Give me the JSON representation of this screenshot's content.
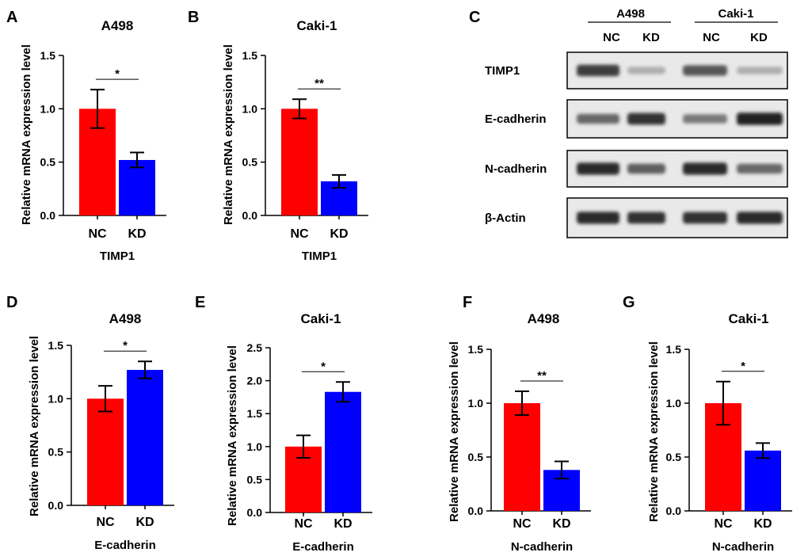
{
  "colors": {
    "nc": "#ff0000",
    "kd": "#0000ff",
    "axis": "#000000"
  },
  "chart_data": [
    {
      "panel": "A",
      "type": "bar",
      "title": "A498",
      "xlabel": "TIMP1",
      "ylabel": "Relative mRNA expression level",
      "categories": [
        "NC",
        "KD"
      ],
      "values": [
        1.0,
        0.52
      ],
      "errors": [
        0.18,
        0.07
      ],
      "ylim": [
        0,
        1.5
      ],
      "yticks": [
        "0.0",
        "0.5",
        "1.0",
        "1.5"
      ],
      "significance": "*"
    },
    {
      "panel": "B",
      "type": "bar",
      "title": "Caki-1",
      "xlabel": "TIMP1",
      "ylabel": "Relative mRNA expression level",
      "categories": [
        "NC",
        "KD"
      ],
      "values": [
        1.0,
        0.32
      ],
      "errors": [
        0.09,
        0.06
      ],
      "ylim": [
        0,
        1.5
      ],
      "yticks": [
        "0.0",
        "0.5",
        "1.0",
        "1.5"
      ],
      "significance": "**"
    },
    {
      "panel": "D",
      "type": "bar",
      "title": "A498",
      "xlabel": "E-cadherin",
      "ylabel": "Relative mRNA expression level",
      "categories": [
        "NC",
        "KD"
      ],
      "values": [
        1.0,
        1.27
      ],
      "errors": [
        0.12,
        0.08
      ],
      "ylim": [
        0,
        1.5
      ],
      "yticks": [
        "0.0",
        "0.5",
        "1.0",
        "1.5"
      ],
      "significance": "*"
    },
    {
      "panel": "E",
      "type": "bar",
      "title": "Caki-1",
      "xlabel": "E-cadherin",
      "ylabel": "Relative mRNA expression level",
      "categories": [
        "NC",
        "KD"
      ],
      "values": [
        1.0,
        1.83
      ],
      "errors": [
        0.17,
        0.15
      ],
      "ylim": [
        0,
        2.5
      ],
      "yticks": [
        "0.0",
        "0.5",
        "1.0",
        "1.5",
        "2.0",
        "2.5"
      ],
      "significance": "*"
    },
    {
      "panel": "F",
      "type": "bar",
      "title": "A498",
      "xlabel": "N-cadherin",
      "ylabel": "Relative mRNA expression level",
      "categories": [
        "NC",
        "KD"
      ],
      "values": [
        1.0,
        0.38
      ],
      "errors": [
        0.11,
        0.08
      ],
      "ylim": [
        0,
        1.5
      ],
      "yticks": [
        "0.0",
        "0.5",
        "1.0",
        "1.5"
      ],
      "significance": "**"
    },
    {
      "panel": "G",
      "type": "bar",
      "title": "Caki-1",
      "xlabel": "N-cadherin",
      "ylabel": "Relative mRNA expression level",
      "categories": [
        "NC",
        "KD"
      ],
      "values": [
        1.0,
        0.56
      ],
      "errors": [
        0.2,
        0.07
      ],
      "ylim": [
        0,
        1.5
      ],
      "yticks": [
        "0.0",
        "0.5",
        "1.0",
        "1.5"
      ],
      "significance": "*"
    }
  ],
  "western_blot": {
    "panel": "C",
    "cell_lines": [
      "A498",
      "Caki-1"
    ],
    "lanes": [
      "NC",
      "KD",
      "NC",
      "KD"
    ],
    "rows": [
      {
        "label": "TIMP1",
        "intensities": [
          0.8,
          0.15,
          0.65,
          0.15
        ]
      },
      {
        "label": "E-cadherin",
        "intensities": [
          0.55,
          0.85,
          0.45,
          0.95
        ]
      },
      {
        "label": "N-cadherin",
        "intensities": [
          0.9,
          0.6,
          0.9,
          0.55
        ]
      },
      {
        "label": "β-Actin",
        "intensities": [
          0.9,
          0.85,
          0.85,
          0.9
        ]
      }
    ]
  }
}
